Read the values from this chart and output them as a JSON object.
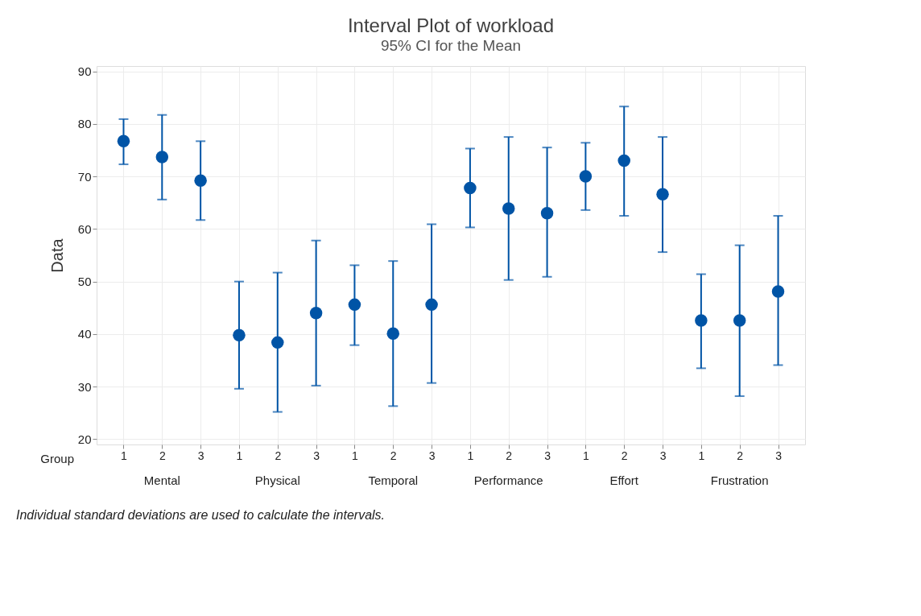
{
  "chart_data": {
    "type": "scatter",
    "title": "Interval Plot of workload",
    "subtitle": "95% CI for the Mean",
    "ylabel": "Data",
    "xlabel": "Group",
    "categories": [
      "1",
      "2",
      "3",
      "1",
      "2",
      "3",
      "1",
      "2",
      "3",
      "1",
      "2",
      "3",
      "1",
      "2",
      "3",
      "1",
      "2",
      "3"
    ],
    "series": [
      {
        "color": "#0054a6",
        "values": [
          76.7,
          73.7,
          69.2,
          39.8,
          38.4,
          44.0,
          45.6,
          40.1,
          45.6,
          67.8,
          63.9,
          63.0,
          70.0,
          73.0,
          66.6,
          42.6,
          42.6,
          48.1
        ],
        "errors": [
          [
            72.3,
            80.9
          ],
          [
            65.6,
            81.7
          ],
          [
            61.7,
            76.7
          ],
          [
            29.6,
            50.0
          ],
          [
            25.2,
            51.7
          ],
          [
            30.2,
            57.8
          ],
          [
            37.9,
            53.1
          ],
          [
            26.3,
            53.9
          ],
          [
            30.7,
            60.9
          ],
          [
            60.3,
            75.3
          ],
          [
            50.3,
            77.5
          ],
          [
            50.9,
            75.5
          ],
          [
            63.6,
            76.4
          ],
          [
            62.5,
            83.3
          ],
          [
            55.6,
            77.5
          ],
          [
            33.5,
            51.4
          ],
          [
            28.2,
            56.9
          ],
          [
            34.1,
            62.5
          ]
        ]
      }
    ],
    "ylim": [
      19,
      91
    ],
    "yticks": [
      20,
      30,
      40,
      50,
      60,
      70,
      80,
      90
    ],
    "grid": true,
    "marker": "circle",
    "annotations": [
      "Mental",
      "Physical",
      "Temporal",
      "Performance",
      "Effort",
      "Frustration",
      "Individual standard deviations are used to calculate the intervals."
    ]
  }
}
